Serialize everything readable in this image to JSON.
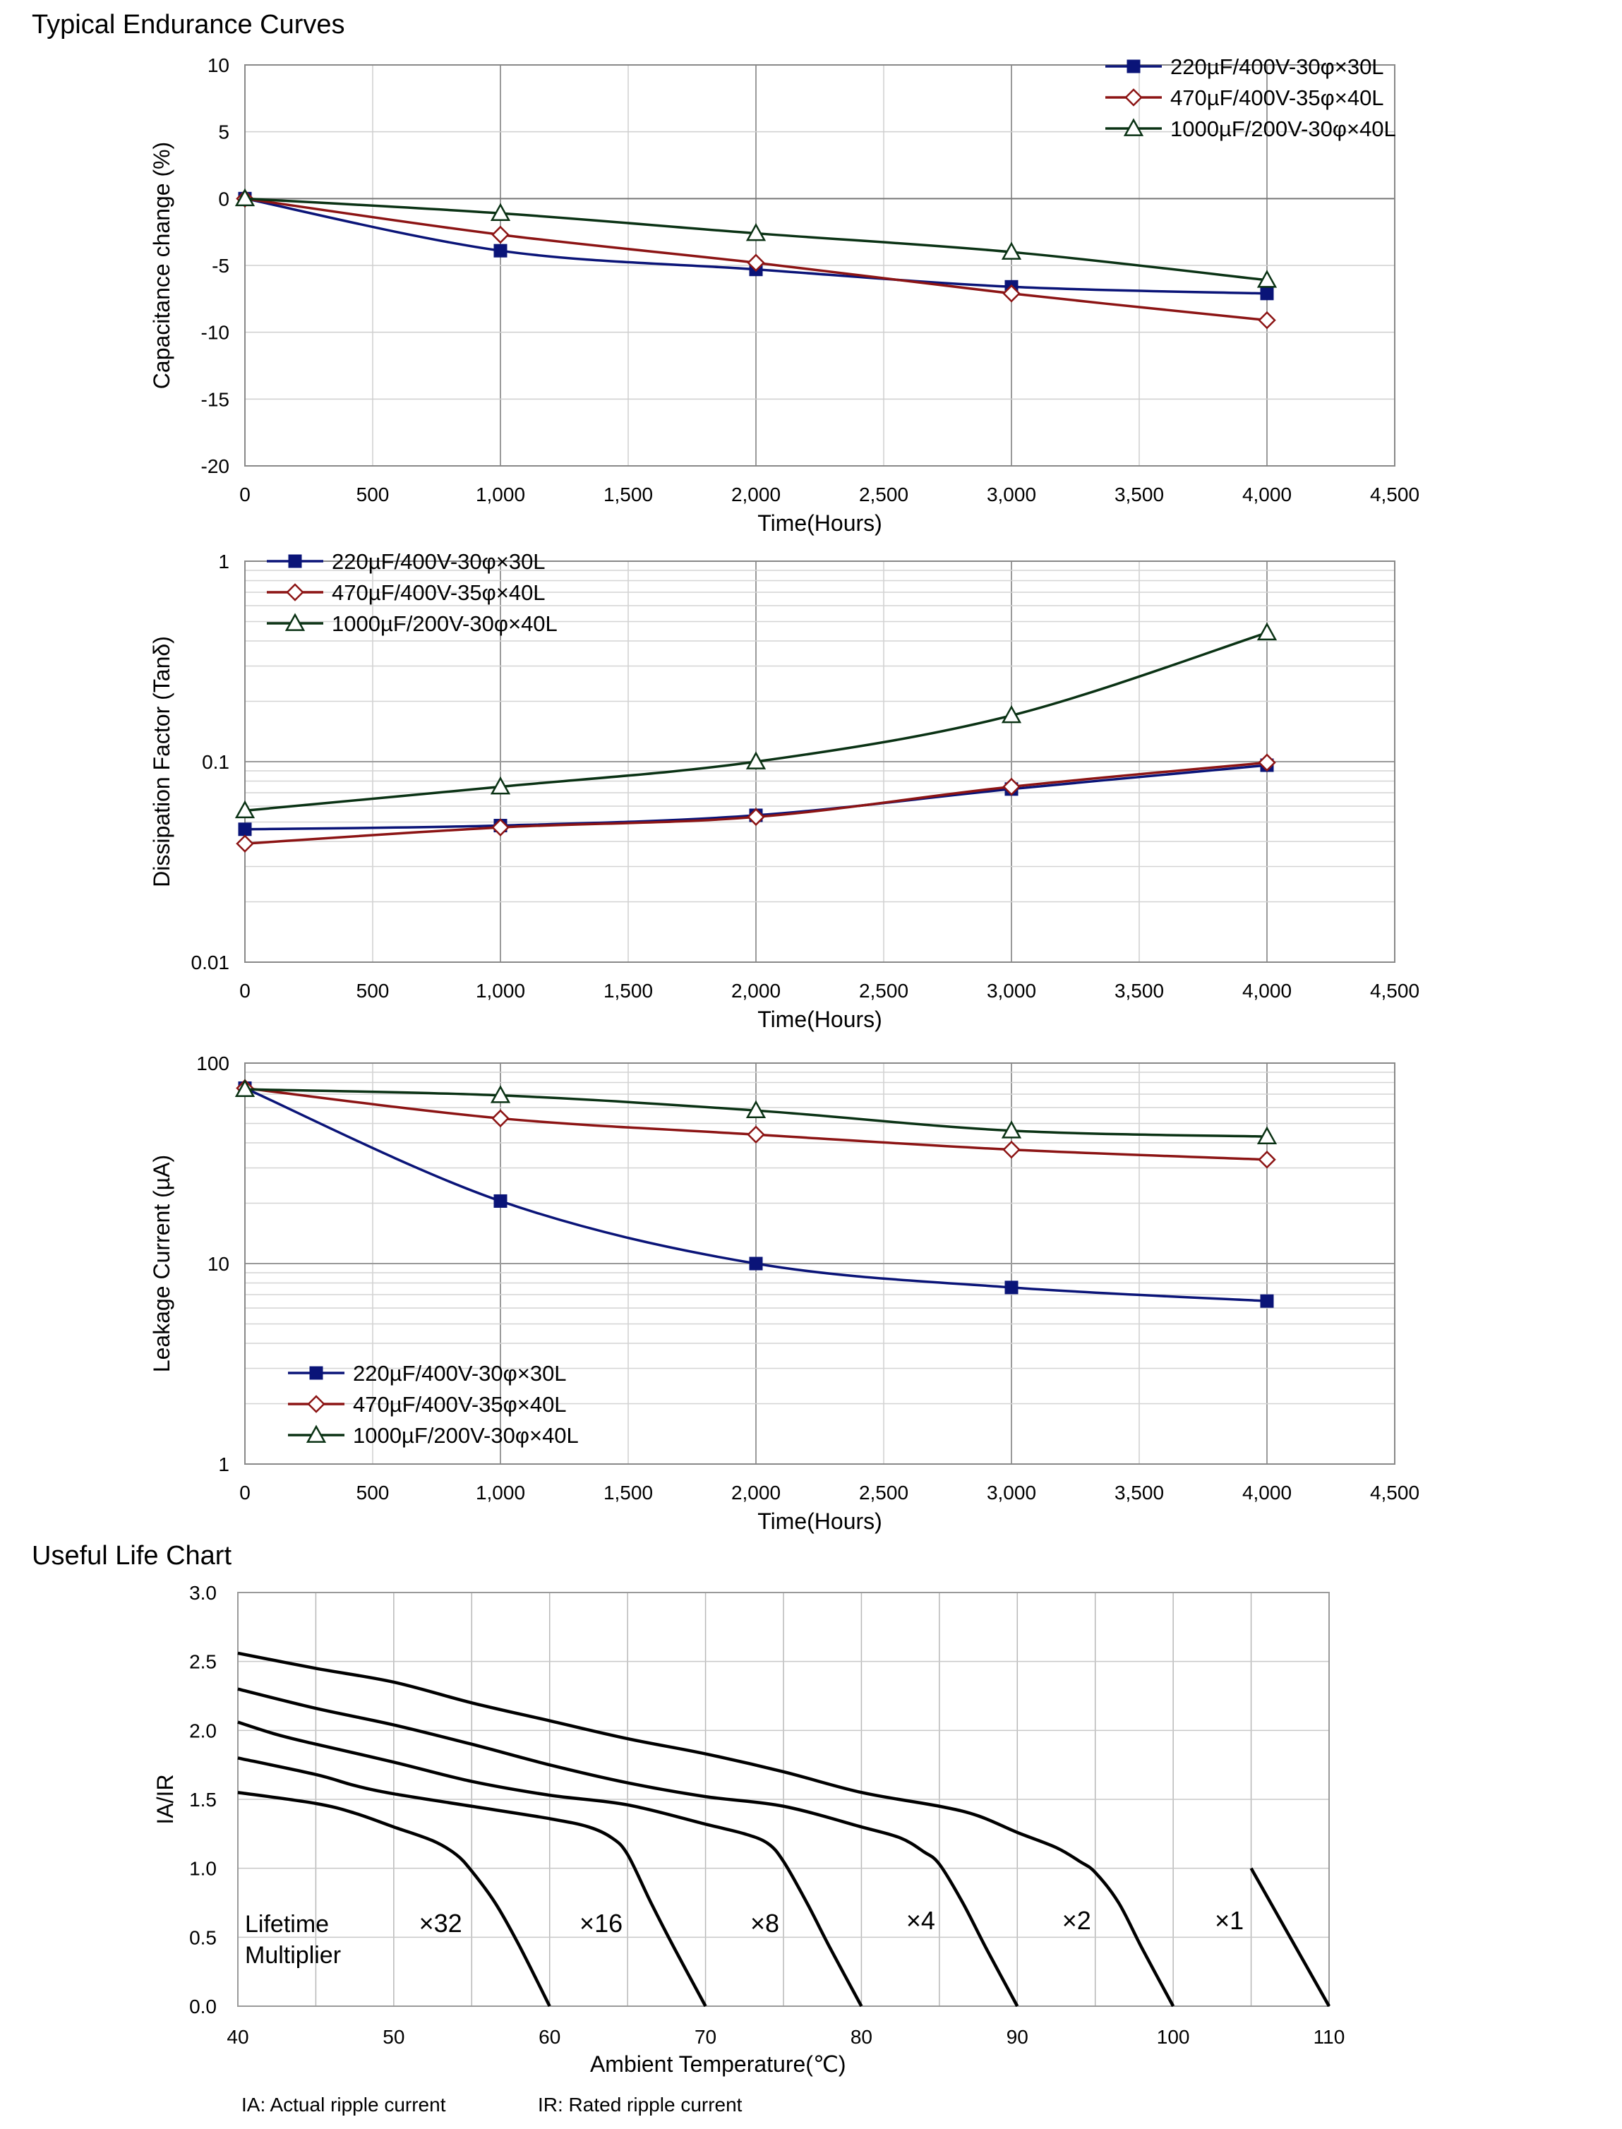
{
  "page": {
    "section1_title": "Typical Endurance Curves",
    "section2_title": "Useful Life Chart",
    "footnote_ia": "IA: Actual ripple current",
    "footnote_ir": "IR: Rated ripple current"
  },
  "series_style": [
    {
      "name": "220µF/400V-30φ×30L",
      "color": "#0a1478",
      "marker": "square"
    },
    {
      "name": "470µF/400V-35φ×40L",
      "color": "#8c1414",
      "marker": "diamond"
    },
    {
      "name": "1000µF/200V-30φ×40L",
      "color": "#0a3214",
      "marker": "triangle"
    }
  ],
  "chart_data": [
    {
      "type": "line",
      "title": "",
      "xlabel": "Time(Hours)",
      "ylabel": "Capacitance change (%)",
      "xlim": [
        0,
        4500
      ],
      "ylim": [
        -20,
        10
      ],
      "yscale": "linear",
      "xticks": [
        "0",
        "500",
        "1,000",
        "1,500",
        "2,000",
        "2,500",
        "3,000",
        "3,500",
        "4,000",
        "4,500"
      ],
      "yticks": [
        "10",
        "5",
        "0",
        "-5",
        "-10",
        "-15",
        "-20"
      ],
      "grid": true,
      "legend_position": "top-right",
      "x": [
        0,
        1000,
        2000,
        3000,
        4000
      ],
      "series": [
        {
          "name": "220µF/400V-30φ×30L",
          "values": [
            0,
            -3.9,
            -5.3,
            -6.6,
            -7.1
          ]
        },
        {
          "name": "470µF/400V-35φ×40L",
          "values": [
            0,
            -2.7,
            -4.8,
            -7.1,
            -9.1
          ]
        },
        {
          "name": "1000µF/200V-30φ×40L",
          "values": [
            0,
            -1.1,
            -2.6,
            -4.0,
            -6.1
          ]
        }
      ]
    },
    {
      "type": "line",
      "title": "",
      "xlabel": "Time(Hours)",
      "ylabel": "Dissipation Factor (Tanδ)",
      "xlim": [
        0,
        4500
      ],
      "ylim": [
        0.01,
        1
      ],
      "yscale": "log",
      "xticks": [
        "0",
        "500",
        "1,000",
        "1,500",
        "2,000",
        "2,500",
        "3,000",
        "3,500",
        "4,000",
        "4,500"
      ],
      "yticks": [
        "1",
        "0.1",
        "0.01"
      ],
      "grid": true,
      "legend_position": "top-left",
      "x": [
        0,
        1000,
        2000,
        3000,
        4000
      ],
      "series": [
        {
          "name": "220µF/400V-30φ×30L",
          "values": [
            0.046,
            0.048,
            0.054,
            0.073,
            0.096
          ]
        },
        {
          "name": "470µF/400V-35φ×40L",
          "values": [
            0.039,
            0.047,
            0.053,
            0.075,
            0.099
          ]
        },
        {
          "name": "1000µF/200V-30φ×40L",
          "values": [
            0.057,
            0.075,
            0.1,
            0.17,
            0.44
          ]
        }
      ]
    },
    {
      "type": "line",
      "title": "",
      "xlabel": "Time(Hours)",
      "ylabel": "Leakage Current (µA)",
      "xlim": [
        0,
        4500
      ],
      "ylim": [
        1,
        100
      ],
      "yscale": "log",
      "xticks": [
        "0",
        "500",
        "1,000",
        "1,500",
        "2,000",
        "2,500",
        "3,000",
        "3,500",
        "4,000",
        "4,500"
      ],
      "yticks": [
        "100",
        "10",
        "1"
      ],
      "grid": true,
      "legend_position": "bottom-left",
      "x": [
        0,
        1000,
        2000,
        3000,
        4000
      ],
      "series": [
        {
          "name": "220µF/400V-30φ×30L",
          "values": [
            75,
            20.5,
            10,
            7.6,
            6.5
          ]
        },
        {
          "name": "470µF/400V-35φ×40L",
          "values": [
            75,
            53,
            44,
            37,
            33
          ]
        },
        {
          "name": "1000µF/200V-30φ×40L",
          "values": [
            74,
            69,
            58,
            46,
            43
          ]
        }
      ]
    },
    {
      "type": "line",
      "title": "",
      "xlabel": "Ambient Temperature(℃)",
      "ylabel": "IA/IR",
      "xlim": [
        40,
        110
      ],
      "ylim": [
        0,
        3
      ],
      "yscale": "linear",
      "xticks": [
        "40",
        "50",
        "60",
        "70",
        "80",
        "90",
        "100",
        "110"
      ],
      "yticks": [
        "3.0",
        "2.5",
        "2.0",
        "1.5",
        "1.0",
        "0.5",
        "0.0"
      ],
      "grid": true,
      "annotation": "Lifetime Multiplier",
      "annotation_lines": [
        "Lifetime",
        "Multiplier"
      ],
      "curves": [
        {
          "label": "×32",
          "label_at": [
            53,
            0.6
          ],
          "points": [
            [
              40,
              1.55
            ],
            [
              45,
              1.47
            ],
            [
              47.5,
              1.4
            ],
            [
              50,
              1.3
            ],
            [
              52.5,
              1.2
            ],
            [
              54,
              1.1
            ],
            [
              55,
              0.98
            ],
            [
              56.5,
              0.75
            ],
            [
              58,
              0.45
            ],
            [
              60,
              0
            ]
          ]
        },
        {
          "label": "×16",
          "label_at": [
            63.3,
            0.6
          ],
          "points": [
            [
              40,
              1.8
            ],
            [
              45,
              1.68
            ],
            [
              47.5,
              1.6
            ],
            [
              50,
              1.54
            ],
            [
              55,
              1.45
            ],
            [
              60,
              1.36
            ],
            [
              62.5,
              1.3
            ],
            [
              64,
              1.22
            ],
            [
              65,
              1.1
            ],
            [
              66.5,
              0.75
            ],
            [
              68,
              0.42
            ],
            [
              70,
              0
            ]
          ]
        },
        {
          "label": "×8",
          "label_at": [
            73.8,
            0.6
          ],
          "points": [
            [
              40,
              2.06
            ],
            [
              42.5,
              1.97
            ],
            [
              45,
              1.9
            ],
            [
              50,
              1.77
            ],
            [
              55,
              1.63
            ],
            [
              60,
              1.53
            ],
            [
              65,
              1.46
            ],
            [
              70,
              1.32
            ],
            [
              72.5,
              1.25
            ],
            [
              74,
              1.18
            ],
            [
              75,
              1.05
            ],
            [
              76.5,
              0.75
            ],
            [
              78,
              0.42
            ],
            [
              80,
              0
            ]
          ]
        },
        {
          "label": "×4",
          "label_at": [
            83.8,
            0.62
          ],
          "points": [
            [
              40,
              2.3
            ],
            [
              45,
              2.16
            ],
            [
              50,
              2.04
            ],
            [
              55,
              1.9
            ],
            [
              60,
              1.75
            ],
            [
              65,
              1.62
            ],
            [
              70,
              1.52
            ],
            [
              75,
              1.45
            ],
            [
              80,
              1.3
            ],
            [
              82.5,
              1.22
            ],
            [
              84,
              1.12
            ],
            [
              85,
              1.03
            ],
            [
              86.5,
              0.75
            ],
            [
              88,
              0.42
            ],
            [
              90,
              0
            ]
          ]
        },
        {
          "label": "×2",
          "label_at": [
            93.8,
            0.62
          ],
          "points": [
            [
              40,
              2.56
            ],
            [
              45,
              2.45
            ],
            [
              50,
              2.35
            ],
            [
              55,
              2.2
            ],
            [
              60,
              2.07
            ],
            [
              65,
              1.94
            ],
            [
              70,
              1.83
            ],
            [
              75,
              1.7
            ],
            [
              80,
              1.55
            ],
            [
              85,
              1.45
            ],
            [
              87.5,
              1.38
            ],
            [
              90,
              1.26
            ],
            [
              92.5,
              1.15
            ],
            [
              94,
              1.05
            ],
            [
              95,
              0.97
            ],
            [
              96.5,
              0.75
            ],
            [
              98,
              0.42
            ],
            [
              100,
              0
            ]
          ]
        },
        {
          "label": "×1",
          "label_at": [
            103.6,
            0.62
          ],
          "points": [
            [
              105,
              1.0
            ],
            [
              110,
              0
            ]
          ]
        }
      ]
    }
  ]
}
